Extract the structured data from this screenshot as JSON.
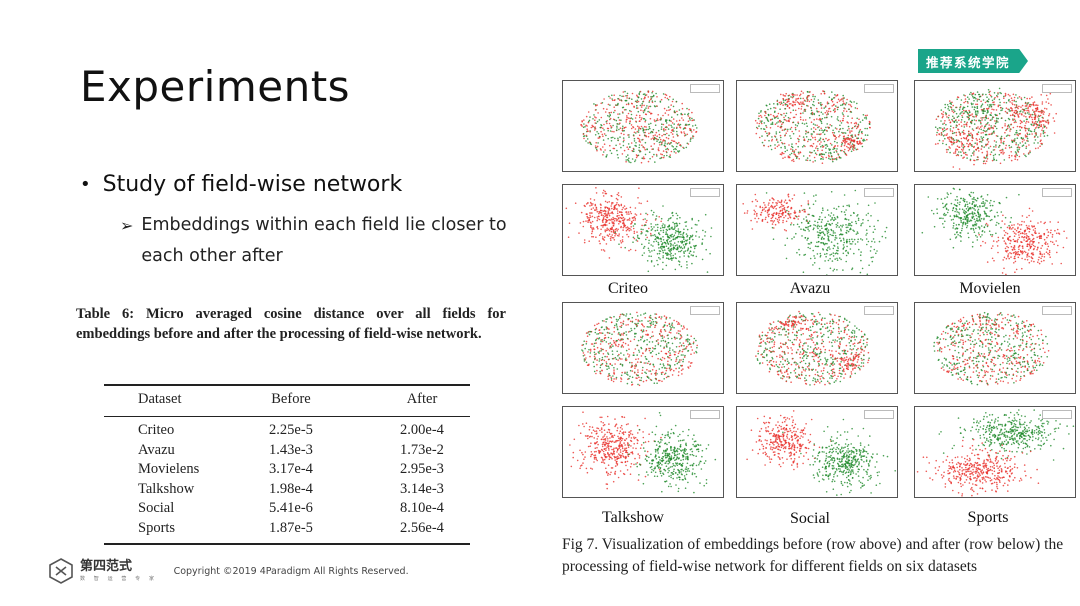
{
  "slide": {
    "title": "Experiments",
    "bullet_main": "Study of field-wise network",
    "bullet_sub": "Embeddings within each field lie closer to each other after"
  },
  "badge": {
    "text": "推荐系统学院",
    "color": "#1aa58a"
  },
  "table": {
    "caption": "Table 6: Micro averaged cosine distance over all fields for embeddings before and after the processing of field-wise network.",
    "headers": [
      "Dataset",
      "Before",
      "After"
    ],
    "rows": [
      [
        "Criteo",
        "2.25e-5",
        "2.00e-4"
      ],
      [
        "Avazu",
        "1.43e-3",
        "1.73e-2"
      ],
      [
        "Movielens",
        "3.17e-4",
        "2.95e-3"
      ],
      [
        "Talkshow",
        "1.98e-4",
        "3.14e-3"
      ],
      [
        "Social",
        "5.41e-6",
        "8.10e-4"
      ],
      [
        "Sports",
        "1.87e-5",
        "2.56e-4"
      ]
    ]
  },
  "figure": {
    "dataset_labels_top": [
      "Criteo",
      "Avazu",
      "Movielen"
    ],
    "dataset_labels_bottom": [
      "Talkshow",
      "Social",
      "Sports"
    ],
    "caption": "Fig 7. Visualization of embeddings before (row above) and after (row below) the processing of field-wise network for different fields on six datasets",
    "colors": {
      "field_a": "#e8302a",
      "field_b": "#1f8a2a"
    }
  },
  "footer": {
    "logo_text": "第四范式",
    "logo_sub": "数 智 运 营 专 家",
    "copyright": "Copyright ©2019 4Paradigm All Rights Reserved."
  }
}
